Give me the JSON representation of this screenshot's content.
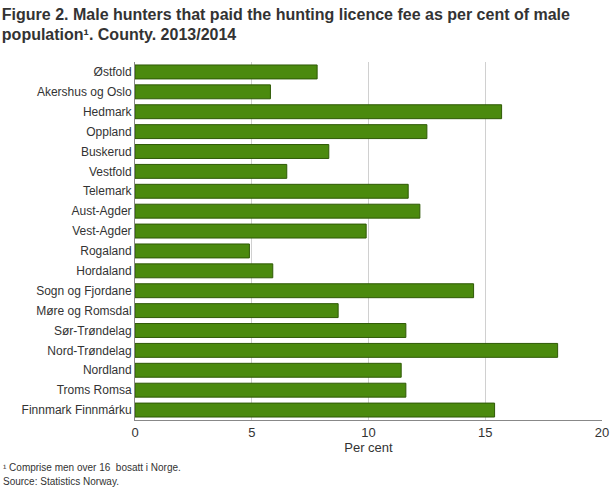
{
  "chart_data": {
    "type": "bar",
    "orientation": "horizontal",
    "title": [
      "Figure 2. Male hunters that paid the hunting licence fee as per cent of male",
      "population¹. County. 2013/2014"
    ],
    "x_label": "Per cent",
    "categories": [
      "Østfold",
      "Akershus og Oslo",
      "Hedmark",
      "Oppland",
      "Buskerud",
      "Vestfold",
      "Telemark",
      "Aust-Agder",
      "Vest-Agder",
      "Rogaland",
      "Hordaland",
      "Sogn og Fjordane",
      "Møre og Romsdal",
      "Sør-Trøndelag",
      "Nord-Trøndelag",
      "Nordland",
      "Troms Romsa",
      "Finnmark Finnmárku"
    ],
    "values": [
      7.8,
      5.8,
      15.7,
      12.5,
      8.3,
      6.5,
      11.7,
      12.2,
      9.9,
      4.9,
      5.9,
      14.5,
      8.7,
      11.6,
      18.1,
      11.4,
      11.6,
      15.4
    ],
    "color": "#4b8a0e",
    "xlim": [
      0,
      20
    ],
    "xticks": [
      0,
      5,
      10,
      15,
      20
    ],
    "grid": true,
    "annotations": [
      "¹ Comprise men over 16  bosatt i Norge.",
      "Source: Statistics Norway."
    ]
  }
}
